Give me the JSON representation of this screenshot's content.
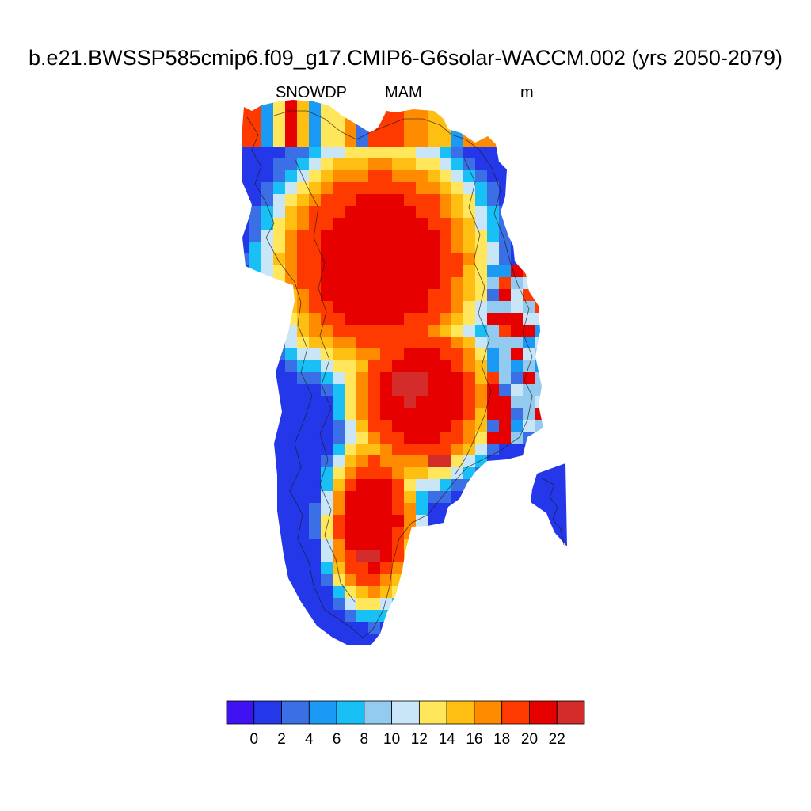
{
  "chart_data": {
    "type": "heatmap",
    "title": "b.e21.BWSSP585cmip6.f09_g17.CMIP6-G6solar-WACCM.002 (yrs 2050-2079)",
    "variable": "SNOWDP",
    "season": "MAM",
    "units": "m",
    "region": "Greenland",
    "colorbar": {
      "levels": [
        0,
        2,
        4,
        6,
        8,
        10,
        12,
        14,
        16,
        18,
        20,
        22
      ],
      "tick_labels": [
        "0",
        "2",
        "4",
        "6",
        "8",
        "10",
        "12",
        "14",
        "16",
        "18",
        "20",
        "22"
      ],
      "colors": [
        "#3f12f4",
        "#2438ea",
        "#3a6fe6",
        "#1a99f5",
        "#18c0f5",
        "#92cbef",
        "#c8e6f8",
        "#ffe65a",
        "#ffbe12",
        "#ff8c00",
        "#ff3a00",
        "#e60000",
        "#d42b2b"
      ],
      "orientation": "horizontal",
      "placement": "bottom"
    },
    "coastline": true
  }
}
